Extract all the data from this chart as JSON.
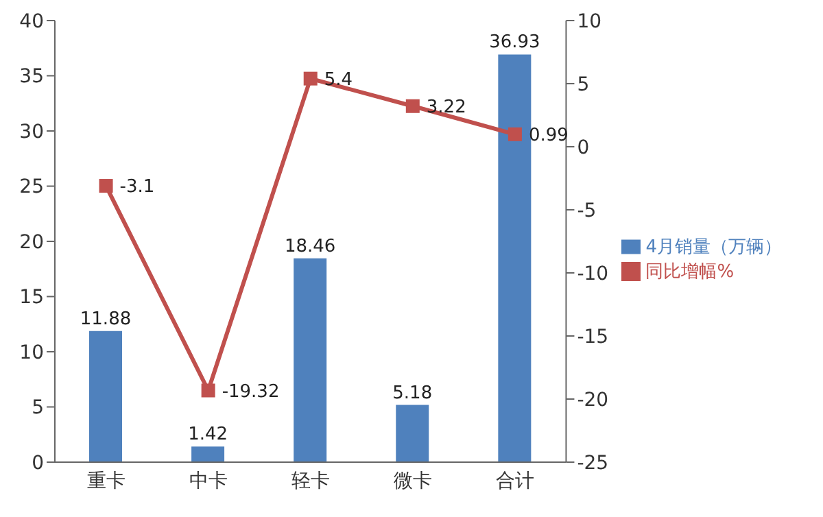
{
  "chart_data": {
    "type": "bar",
    "categories": [
      "重卡",
      "中卡",
      "轻卡",
      "微卡",
      "合计"
    ],
    "series": [
      {
        "name": "4月销量（万辆）",
        "color": "#4f81bd",
        "values": [
          11.88,
          1.42,
          18.46,
          5.18,
          36.93
        ]
      },
      {
        "name": "同比增幅%",
        "type": "line",
        "axis": "y2",
        "color": "#c0504d",
        "values": [
          -3.1,
          -19.32,
          5.4,
          3.22,
          0.99
        ]
      }
    ],
    "ylim": [
      0,
      40
    ],
    "yticks": [
      0,
      5,
      10,
      15,
      20,
      25,
      30,
      35,
      40
    ],
    "y2lim": [
      -25,
      10
    ],
    "y2ticks": [
      -25,
      -20,
      -15,
      -10,
      -5,
      0,
      5,
      10
    ],
    "data_labels": true,
    "legend": "right",
    "marker": "square",
    "grid": false
  }
}
